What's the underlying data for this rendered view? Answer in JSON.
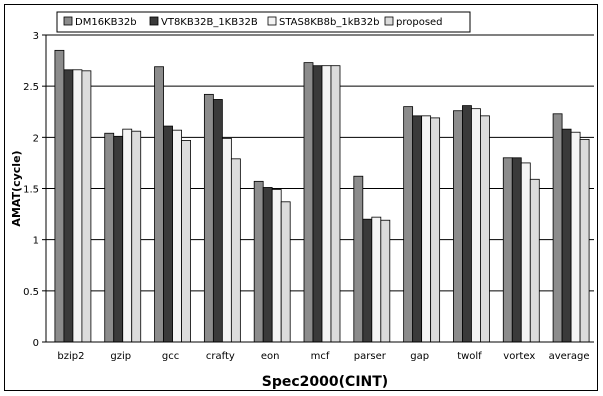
{
  "chart_data": {
    "type": "bar",
    "xlabel": "Spec2000(CINT)",
    "ylabel": "AMAT(cycle)",
    "ylim": [
      0,
      3
    ],
    "yticks": [
      "0",
      "0.5",
      "1",
      "1.5",
      "2",
      "2.5",
      "3"
    ],
    "grid": "horizontal",
    "legend_position": "top",
    "categories": [
      "bzip2",
      "gzip",
      "gcc",
      "crafty",
      "eon",
      "mcf",
      "parser",
      "gap",
      "twolf",
      "vortex",
      "average"
    ],
    "series": [
      {
        "name": "DM16KB32b",
        "color": "#8c8c8c",
        "values": [
          2.85,
          2.04,
          2.69,
          2.42,
          1.57,
          2.73,
          1.62,
          2.3,
          2.26,
          1.8,
          2.23
        ]
      },
      {
        "name": "VT8KB32B_1KB32B",
        "color": "#3a3a3a",
        "values": [
          2.66,
          2.01,
          2.11,
          2.37,
          1.51,
          2.7,
          1.2,
          2.21,
          2.31,
          1.8,
          2.08
        ]
      },
      {
        "name": "STAS8KB8b_1kB32b",
        "color": "#f4f4f4",
        "values": [
          2.66,
          2.08,
          2.07,
          1.99,
          1.49,
          2.7,
          1.22,
          2.21,
          2.28,
          1.75,
          2.05
        ]
      },
      {
        "name": "proposed",
        "color": "#dcdcdc",
        "values": [
          2.65,
          2.06,
          1.97,
          1.79,
          1.37,
          2.7,
          1.19,
          2.19,
          2.21,
          1.59,
          1.98
        ]
      }
    ]
  }
}
